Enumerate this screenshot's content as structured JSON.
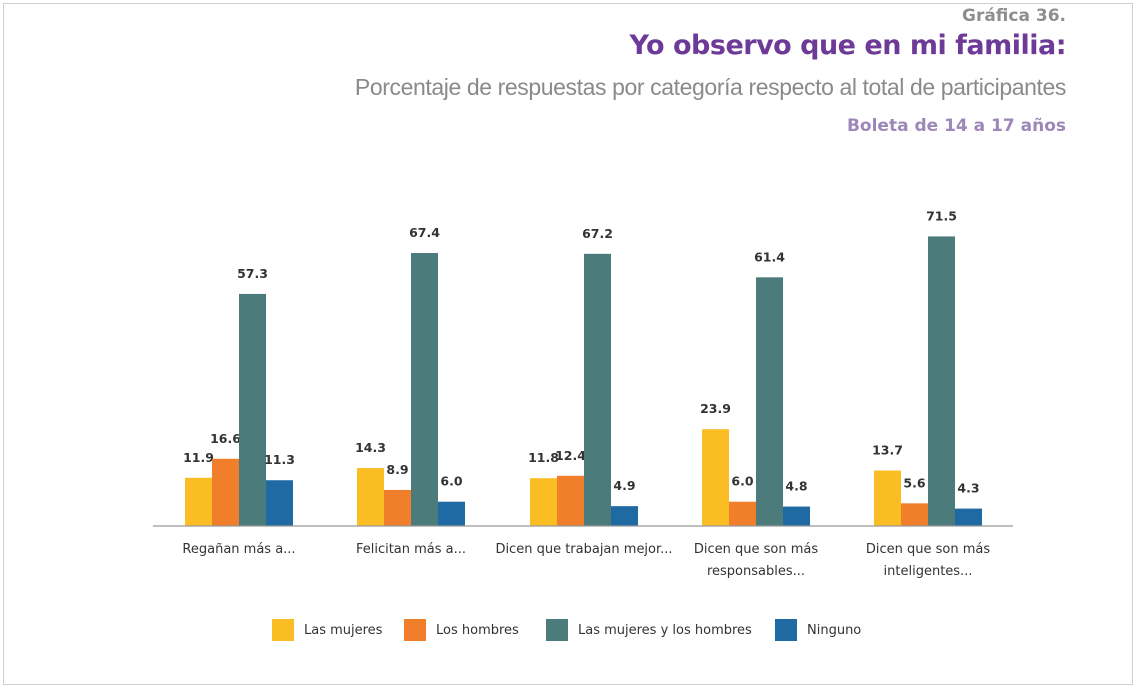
{
  "header": {
    "figure_number": "Gráfica 36.",
    "title": "Yo observo que en mi familia:",
    "subtitle": "Porcentaje de respuestas por categoría respecto al total de participantes",
    "subtitle2": "Boleta de 14 a 17 años"
  },
  "colors": {
    "Las mujeres": "#fbbd24",
    "Los hombres": "#f07e2b",
    "Las mujeres y los hombres": "#4b7b7b",
    "Ninguno": "#1f6aa3",
    "axis": "#999999",
    "label_text": "#333333"
  },
  "chart_data": {
    "type": "bar",
    "categories": [
      [
        "Regañan más a..."
      ],
      [
        "Felicitan más a..."
      ],
      [
        "Dicen que trabajan mejor..."
      ],
      [
        "Dicen que son más",
        "responsables..."
      ],
      [
        "Dicen que son más",
        "inteligentes..."
      ]
    ],
    "series": [
      {
        "name": "Las mujeres",
        "values": [
          11.9,
          14.3,
          11.8,
          23.9,
          13.7
        ]
      },
      {
        "name": "Los hombres",
        "values": [
          16.6,
          8.9,
          12.4,
          6.0,
          5.6
        ]
      },
      {
        "name": "Las mujeres y los hombres",
        "values": [
          57.3,
          67.4,
          67.2,
          61.4,
          71.5
        ]
      },
      {
        "name": "Ninguno",
        "values": [
          11.3,
          6.0,
          4.9,
          4.8,
          4.3
        ]
      }
    ],
    "value_labels": [
      [
        "11.9",
        "14.3",
        "11.8",
        "23.9",
        "13.7"
      ],
      [
        "16.6",
        "8.9",
        "12.4",
        "6.0",
        "5.6"
      ],
      [
        "57.3",
        "67.4",
        "67.2",
        "61.4",
        "71.5"
      ],
      [
        "11.3",
        "6.0",
        "4.9",
        "4.8",
        "4.3"
      ]
    ],
    "ylim": [
      0,
      80
    ],
    "grid": false,
    "legend_position": "bottom"
  },
  "legend": {
    "items": [
      {
        "label": "Las mujeres",
        "color": "#fbbd24"
      },
      {
        "label": "Los hombres",
        "color": "#f07e2b"
      },
      {
        "label": "Las mujeres y los hombres",
        "color": "#4b7b7b"
      },
      {
        "label": "Ninguno",
        "color": "#1f6aa3"
      }
    ]
  }
}
